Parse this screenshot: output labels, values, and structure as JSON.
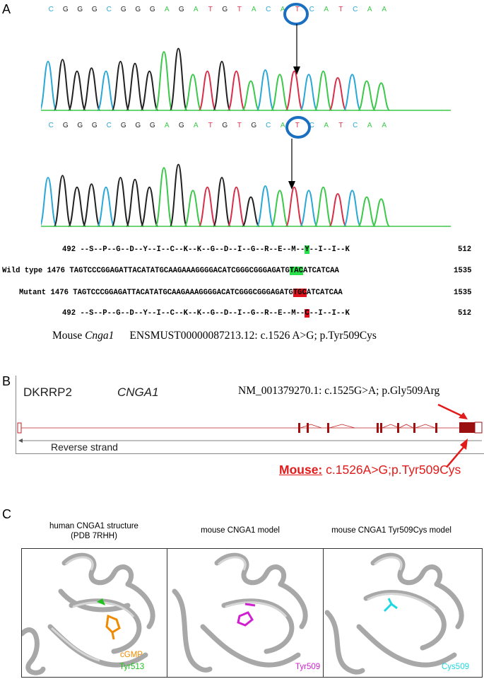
{
  "panelA": {
    "letter": "A",
    "wt_bases": [
      "C",
      "G",
      "G",
      "G",
      "C",
      "G",
      "G",
      "G",
      "A",
      "G",
      "A",
      "T",
      "G",
      "T",
      "A",
      "C",
      "A",
      "T",
      "C",
      "A",
      "T",
      "C",
      "A",
      "A"
    ],
    "mut_bases": [
      "C",
      "G",
      "G",
      "G",
      "C",
      "G",
      "G",
      "G",
      "A",
      "G",
      "A",
      "T",
      "G",
      "T",
      "G",
      "C",
      "A",
      "T",
      "C",
      "A",
      "T",
      "C",
      "A",
      "A"
    ],
    "aa_start": "492",
    "aa_end": "512",
    "wt_aa_pre": "--S--P--G--D--Y--I--C--K--K--G--D--I--G--R--E--M--",
    "wt_aa_hl": "Y",
    "wt_aa_post": "--I--I--K",
    "mut_aa_pre": "--S--P--G--D--Y--I--C--K--K--G--D--I--G--R--E--M--",
    "mut_aa_hl": "C",
    "mut_aa_post": "--I--I--K",
    "wt_label": "Wild type 1476",
    "mut_label": "Mutant 1476",
    "nt_end": "1535",
    "wt_nt_pre": "TAGTCCCGGAGATTACATATGCAAGAAAGGGGACATCGGGCGGGAGATG",
    "wt_nt_hl": "TAC",
    "wt_nt_post": "ATCATCAA",
    "mut_nt_pre": "TAGTCCCGGAGATTACATATGCAAGAAAGGGGACATCGGGCGGGAGATG",
    "mut_nt_hl": "TGC",
    "mut_nt_post": "ATCATCAA",
    "caption_prefix": "Mouse",
    "caption_gene": "Cnga1",
    "caption_rest": "ENSMUST00000087213.12: c.1526 A>G; p.Tyr509Cys"
  },
  "panelB": {
    "letter": "B",
    "locus": "DKRRP2",
    "gene": "CNGA1",
    "human_variant": "NM_001379270.1: c.1525G>A; p.Gly509Arg",
    "strand": "Reverse strand",
    "mouse_label": "Mouse:",
    "mouse_variant": "c.1526A>G;p.Tyr509Cys"
  },
  "panelC": {
    "letter": "C",
    "titles": [
      "human CNGA1 structure",
      "mouse CNGA1 model",
      "mouse CNGA1 Tyr509Cys model"
    ],
    "subtitle": "(PDB 7RHH)",
    "labels": {
      "cgmp": "cGMP",
      "tyr513": "Tyr513",
      "tyr509": "Tyr509",
      "cys509": "Cys509"
    }
  },
  "colors": {
    "A": "#3cc84a",
    "C": "#2aa8d8",
    "G": "#222222",
    "T": "#d8304a",
    "highlight_wt": "#27e04a",
    "highlight_mut": "#e0101c",
    "mouse_red": "#e21a1a",
    "orange": "#f08a00",
    "green_res": "#22c020",
    "magenta": "#d020d0",
    "cyan": "#20d8e0"
  }
}
